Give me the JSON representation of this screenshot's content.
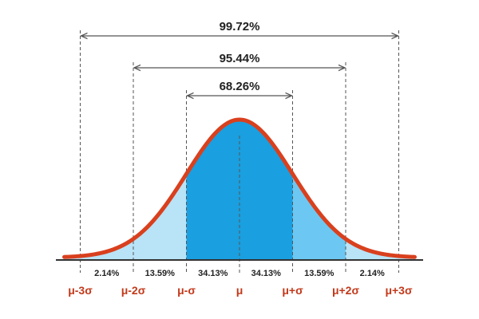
{
  "chart_data": {
    "type": "area",
    "title": "",
    "distribution": "normal",
    "x_ticks": [
      "μ-3σ",
      "μ-2σ",
      "μ-σ",
      "μ",
      "μ+σ",
      "μ+2σ",
      "μ+3σ"
    ],
    "x_tick_values": [
      -3,
      -2,
      -1,
      0,
      1,
      2,
      3
    ],
    "xlim": [
      -3.3,
      3.3
    ],
    "regions": [
      {
        "from": -3,
        "to": -2,
        "percent_label": "2.14%",
        "shade": "light"
      },
      {
        "from": -2,
        "to": -1,
        "percent_label": "13.59%",
        "shade": "light"
      },
      {
        "from": -1,
        "to": 0,
        "percent_label": "34.13%",
        "shade": "dark"
      },
      {
        "from": 0,
        "to": 1,
        "percent_label": "34.13%",
        "shade": "dark"
      },
      {
        "from": 1,
        "to": 2,
        "percent_label": "13.59%",
        "shade": "light"
      },
      {
        "from": 2,
        "to": 3,
        "percent_label": "2.14%",
        "shade": "light"
      }
    ],
    "ranges": [
      {
        "from": -1,
        "to": 1,
        "label": "68.26%"
      },
      {
        "from": -2,
        "to": 2,
        "label": "95.44%"
      },
      {
        "from": -3,
        "to": 3,
        "label": "99.72%"
      }
    ],
    "colors": {
      "curve": "#d9401e",
      "dark_fill": "#1a9fe0",
      "light_fill": "#6cc8f2",
      "tail_fill": "#b9e3f6",
      "tick_label": "#c2391b",
      "axis": "#333333",
      "guide": "#555555"
    }
  }
}
